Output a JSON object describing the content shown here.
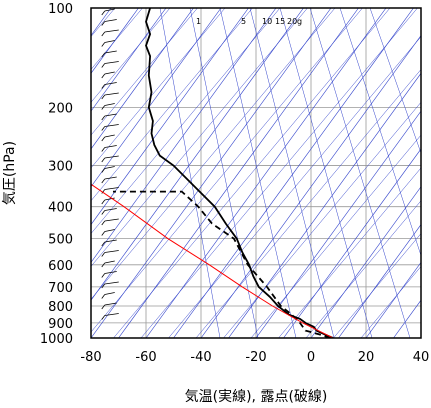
{
  "chart_data": {
    "type": "line",
    "xlabel": "気温(実線), 露点(破線)",
    "ylabel": "気圧(hPa)",
    "xlim": [
      -80,
      40
    ],
    "ylim": [
      1000,
      100
    ],
    "y_scale": "log",
    "x_ticks": [
      -80,
      -60,
      -40,
      -20,
      0,
      20,
      40
    ],
    "y_ticks": [
      100,
      200,
      300,
      400,
      500,
      600,
      700,
      800,
      900,
      1000
    ],
    "mixing_ratio_labels": [
      "1",
      "5",
      "10",
      "15",
      "20",
      "g"
    ],
    "series": [
      {
        "style": "solid",
        "color": "#000000",
        "points": [
          [
            8.0,
            1000
          ],
          [
            5.0,
            975
          ],
          [
            2.0,
            950
          ],
          [
            1.0,
            925
          ],
          [
            -2.0,
            900
          ],
          [
            -4.0,
            875
          ],
          [
            -8.0,
            850
          ],
          [
            -12.0,
            800
          ],
          [
            -15.0,
            750
          ],
          [
            -19.0,
            700
          ],
          [
            -21.0,
            650
          ],
          [
            -22.5,
            600
          ],
          [
            -25.0,
            550
          ],
          [
            -27.0,
            500
          ],
          [
            -31.0,
            450
          ],
          [
            -35.0,
            400
          ],
          [
            -42.0,
            350
          ],
          [
            -50.0,
            300
          ],
          [
            -55.0,
            280
          ],
          [
            -57.0,
            260
          ],
          [
            -58.0,
            240
          ],
          [
            -57.5,
            220
          ],
          [
            -59.0,
            200
          ],
          [
            -58.0,
            180
          ],
          [
            -59.0,
            160
          ],
          [
            -58.5,
            140
          ],
          [
            -60.0,
            130
          ],
          [
            -58.5,
            120
          ],
          [
            -60.0,
            110
          ],
          [
            -58.5,
            100
          ]
        ]
      },
      {
        "style": "dashed",
        "color": "#000000",
        "points": [
          [
            7.0,
            1000
          ],
          [
            3.0,
            975
          ],
          [
            -2.0,
            950
          ],
          [
            -4.0,
            900
          ],
          [
            -7.0,
            850
          ],
          [
            -11.0,
            800
          ],
          [
            -16.0,
            700
          ],
          [
            -23.0,
            600
          ],
          [
            -28.0,
            500
          ],
          [
            -36.0,
            450
          ],
          [
            -41.0,
            400
          ],
          [
            -47.0,
            360
          ],
          [
            -72.0,
            360
          ]
        ]
      },
      {
        "name": "",
        "style": "solid",
        "color": "#ff0000",
        "points": [
          [
            8.0,
            1000
          ],
          [
            -3.0,
            900
          ],
          [
            -14.0,
            800
          ],
          [
            -25.0,
            700
          ],
          [
            -37.0,
            600
          ],
          [
            -52.0,
            500
          ],
          [
            -68.0,
            400
          ],
          [
            -90.0,
            300
          ]
        ]
      }
    ],
    "wind_barbs": "shown along left axis near x=-75"
  }
}
